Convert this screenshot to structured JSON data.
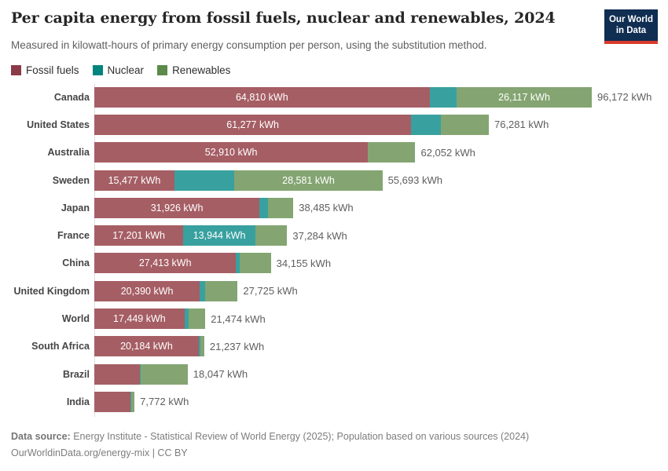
{
  "header": {
    "title": "Per capita energy from fossil fuels, nuclear and renewables, 2024",
    "subtitle": "Measured in kilowatt-hours of primary energy consumption per person, using the substitution method.",
    "logo_line1": "Our World",
    "logo_line2": "in Data",
    "logo_bg_color": "#102d52",
    "logo_accent_color": "#d93a2b"
  },
  "legend": [
    {
      "key": "fossil",
      "label": "Fossil fuels",
      "color": "#8b3a48"
    },
    {
      "key": "nuclear",
      "label": "Nuclear",
      "color": "#00847e"
    },
    {
      "key": "renewables",
      "label": "Renewables",
      "color": "#5b8a4a"
    }
  ],
  "colors": {
    "fossil": "#a55e64",
    "nuclear": "#38a1a0",
    "renewables": "#84a572"
  },
  "chart_data": {
    "type": "bar",
    "orientation": "horizontal",
    "stacked": true,
    "unit": "kWh",
    "series_names": [
      "Fossil fuels",
      "Nuclear",
      "Renewables"
    ],
    "x_max": 96172,
    "grid": false,
    "rows": [
      {
        "country": "Canada",
        "fossil": 64810,
        "nuclear": 5245,
        "renewables": 26117,
        "total": 96172,
        "segment_labels": {
          "fossil": "64,810 kWh",
          "renewables": "26,117 kWh"
        },
        "total_label": "96,172 kWh"
      },
      {
        "country": "United States",
        "fossil": 61277,
        "nuclear": 5700,
        "renewables": 9304,
        "total": 76281,
        "segment_labels": {
          "fossil": "61,277 kWh"
        },
        "total_label": "76,281 kWh"
      },
      {
        "country": "Australia",
        "fossil": 52910,
        "nuclear": 0,
        "renewables": 9142,
        "total": 62052,
        "segment_labels": {
          "fossil": "52,910 kWh"
        },
        "total_label": "62,052 kWh"
      },
      {
        "country": "Sweden",
        "fossil": 15477,
        "nuclear": 11635,
        "renewables": 28581,
        "total": 55693,
        "segment_labels": {
          "fossil": "15,477 kWh",
          "renewables": "28,581 kWh"
        },
        "total_label": "55,693 kWh"
      },
      {
        "country": "Japan",
        "fossil": 31926,
        "nuclear": 1719,
        "renewables": 4840,
        "total": 38485,
        "segment_labels": {
          "fossil": "31,926 kWh"
        },
        "total_label": "38,485 kWh"
      },
      {
        "country": "France",
        "fossil": 17201,
        "nuclear": 13944,
        "renewables": 6139,
        "total": 37284,
        "segment_labels": {
          "fossil": "17,201 kWh",
          "nuclear": "13,944 kWh"
        },
        "total_label": "37,284 kWh"
      },
      {
        "country": "China",
        "fossil": 27413,
        "nuclear": 750,
        "renewables": 5992,
        "total": 34155,
        "segment_labels": {
          "fossil": "27,413 kWh"
        },
        "total_label": "34,155 kWh"
      },
      {
        "country": "United Kingdom",
        "fossil": 20390,
        "nuclear": 1100,
        "renewables": 6235,
        "total": 27725,
        "segment_labels": {
          "fossil": "20,390 kWh"
        },
        "total_label": "27,725 kWh"
      },
      {
        "country": "World",
        "fossil": 17449,
        "nuclear": 760,
        "renewables": 3265,
        "total": 21474,
        "segment_labels": {
          "fossil": "17,449 kWh"
        },
        "total_label": "21,474 kWh"
      },
      {
        "country": "South Africa",
        "fossil": 20184,
        "nuclear": 300,
        "renewables": 753,
        "total": 21237,
        "segment_labels": {
          "fossil": "20,184 kWh"
        },
        "total_label": "21,237 kWh"
      },
      {
        "country": "Brazil",
        "fossil": 8860,
        "nuclear": 100,
        "renewables": 9087,
        "total": 18047,
        "segment_labels": {},
        "total_label": "18,047 kWh"
      },
      {
        "country": "India",
        "fossil": 7050,
        "nuclear": 55,
        "renewables": 667,
        "total": 7772,
        "segment_labels": {},
        "total_label": "7,772 kWh"
      }
    ]
  },
  "footer": {
    "source_label": "Data source:",
    "source_text": " Energy Institute - Statistical Review of World Energy (2025); Population based on various sources (2024)",
    "permalink": "OurWorldinData.org/energy-mix | CC BY"
  }
}
